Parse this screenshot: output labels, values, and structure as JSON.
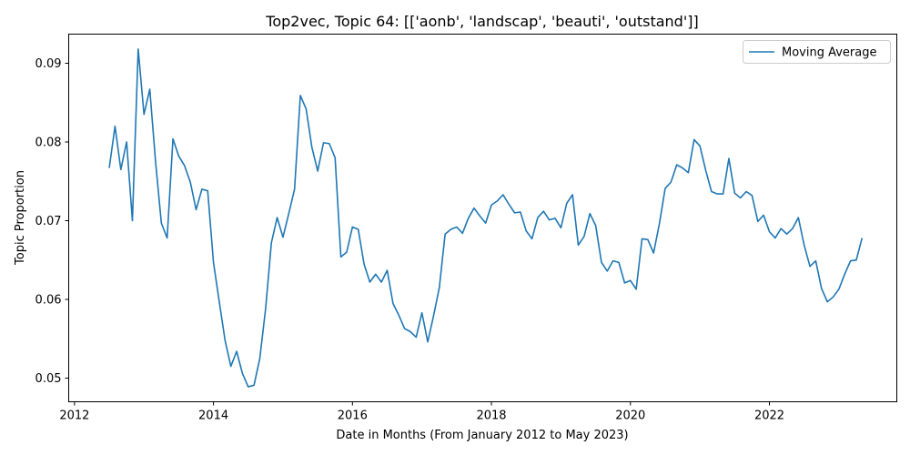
{
  "chart_data": {
    "type": "line",
    "title": "Top2vec, Topic 64: [['aonb', 'landscap', 'beauti', 'outstand']]",
    "xlabel": "Date in Months (From January 2012 to May 2023)",
    "ylabel": "Topic Proportion",
    "x_tick_labels": [
      "2012",
      "2014",
      "2016",
      "2018",
      "2020",
      "2022"
    ],
    "y_tick_labels": [
      "0.05",
      "0.06",
      "0.07",
      "0.08",
      "0.09"
    ],
    "xlim": [
      "2011-12",
      "2023-11"
    ],
    "ylim": [
      0.047,
      0.0937
    ],
    "grid": false,
    "legend_position": "top-right",
    "colors": {
      "series": "#1f77b4"
    },
    "series": [
      {
        "name": "Moving Average",
        "x": [
          "2012-07",
          "2012-08",
          "2012-09",
          "2012-10",
          "2012-11",
          "2012-12",
          "2013-01",
          "2013-02",
          "2013-03",
          "2013-04",
          "2013-05",
          "2013-06",
          "2013-07",
          "2013-08",
          "2013-09",
          "2013-10",
          "2013-11",
          "2013-12",
          "2014-01",
          "2014-02",
          "2014-03",
          "2014-04",
          "2014-05",
          "2014-06",
          "2014-07",
          "2014-08",
          "2014-09",
          "2014-10",
          "2014-11",
          "2014-12",
          "2015-01",
          "2015-02",
          "2015-03",
          "2015-04",
          "2015-05",
          "2015-06",
          "2015-07",
          "2015-08",
          "2015-09",
          "2015-10",
          "2015-11",
          "2015-12",
          "2016-01",
          "2016-02",
          "2016-03",
          "2016-04",
          "2016-05",
          "2016-06",
          "2016-07",
          "2016-08",
          "2016-09",
          "2016-10",
          "2016-11",
          "2016-12",
          "2017-01",
          "2017-02",
          "2017-03",
          "2017-04",
          "2017-05",
          "2017-06",
          "2017-07",
          "2017-08",
          "2017-09",
          "2017-10",
          "2017-11",
          "2017-12",
          "2018-01",
          "2018-02",
          "2018-03",
          "2018-04",
          "2018-05",
          "2018-06",
          "2018-07",
          "2018-08",
          "2018-09",
          "2018-10",
          "2018-11",
          "2018-12",
          "2019-01",
          "2019-02",
          "2019-03",
          "2019-04",
          "2019-05",
          "2019-06",
          "2019-07",
          "2019-08",
          "2019-09",
          "2019-10",
          "2019-11",
          "2019-12",
          "2020-01",
          "2020-02",
          "2020-03",
          "2020-04",
          "2020-05",
          "2020-06",
          "2020-07",
          "2020-08",
          "2020-09",
          "2020-10",
          "2020-11",
          "2020-12",
          "2021-01",
          "2021-02",
          "2021-03",
          "2021-04",
          "2021-05",
          "2021-06",
          "2021-07",
          "2021-08",
          "2021-09",
          "2021-10",
          "2021-11",
          "2021-12",
          "2022-01",
          "2022-02",
          "2022-03",
          "2022-04",
          "2022-05",
          "2022-06",
          "2022-07",
          "2022-08",
          "2022-09",
          "2022-10",
          "2022-11",
          "2022-12",
          "2023-01",
          "2023-02",
          "2023-03",
          "2023-04",
          "2023-05"
        ],
        "values": [
          0.0767,
          0.082,
          0.0765,
          0.08,
          0.07,
          0.0918,
          0.0835,
          0.0867,
          0.0775,
          0.0697,
          0.0678,
          0.0804,
          0.0782,
          0.077,
          0.0749,
          0.0714,
          0.074,
          0.0738,
          0.0647,
          0.0597,
          0.0548,
          0.0515,
          0.0534,
          0.0506,
          0.0489,
          0.0491,
          0.0525,
          0.0588,
          0.0672,
          0.0704,
          0.0679,
          0.0709,
          0.074,
          0.0859,
          0.0842,
          0.0793,
          0.0763,
          0.0799,
          0.0798,
          0.078,
          0.0654,
          0.066,
          0.0692,
          0.0689,
          0.0645,
          0.0622,
          0.0632,
          0.0622,
          0.0637,
          0.0595,
          0.058,
          0.0563,
          0.0559,
          0.0552,
          0.0583,
          0.0546,
          0.0579,
          0.0615,
          0.0683,
          0.0689,
          0.0692,
          0.0684,
          0.0703,
          0.0716,
          0.0706,
          0.0697,
          0.072,
          0.0725,
          0.0733,
          0.0721,
          0.071,
          0.0711,
          0.0687,
          0.0677,
          0.0704,
          0.0712,
          0.0701,
          0.0703,
          0.0691,
          0.0722,
          0.0733,
          0.0669,
          0.068,
          0.0709,
          0.0694,
          0.0647,
          0.0636,
          0.0649,
          0.0647,
          0.0621,
          0.0624,
          0.0613,
          0.0677,
          0.0676,
          0.0659,
          0.0696,
          0.0741,
          0.0749,
          0.0771,
          0.0767,
          0.0761,
          0.0803,
          0.0795,
          0.0764,
          0.0737,
          0.0734,
          0.0734,
          0.0779,
          0.0735,
          0.0729,
          0.0737,
          0.0732,
          0.0699,
          0.0707,
          0.0686,
          0.0678,
          0.069,
          0.0683,
          0.069,
          0.0704,
          0.0669,
          0.0642,
          0.0649,
          0.0614,
          0.0597,
          0.0603,
          0.0613,
          0.0632,
          0.0649,
          0.065,
          0.0678
        ]
      }
    ]
  }
}
